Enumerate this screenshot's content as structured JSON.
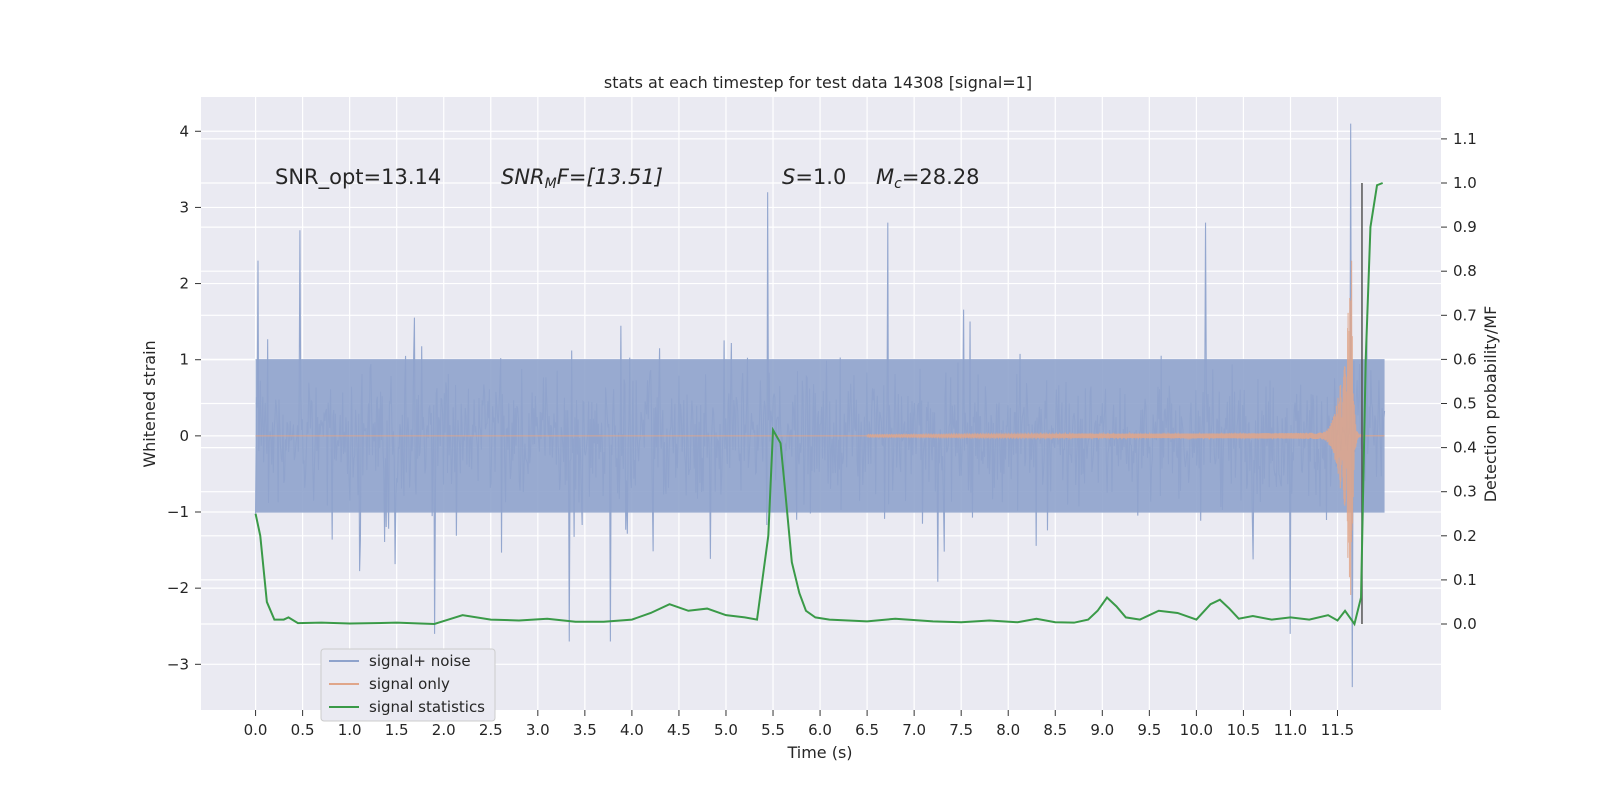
{
  "chart_data": {
    "type": "line",
    "title": "stats at each timestep for test data 14308 [signal=1]",
    "xlabel": "Time (s)",
    "ylabel_left": "Whitened strain",
    "ylabel_right": "Detection probability/MF",
    "xlim": [
      -0.58,
      12.6
    ],
    "ylim_left": [
      -3.6,
      4.45
    ],
    "ylim_right": [
      -0.195,
      1.195
    ],
    "x_ticks": [
      0.0,
      0.5,
      1.0,
      1.5,
      2.0,
      2.5,
      3.0,
      3.5,
      4.0,
      4.5,
      5.0,
      5.5,
      6.0,
      6.5,
      7.0,
      7.5,
      8.0,
      8.5,
      9.0,
      9.5,
      10.0,
      10.5,
      11.0,
      11.5
    ],
    "x_tick_labels": [
      "0.0",
      "0.5",
      "1.0",
      "1.5",
      "2.0",
      "2.5",
      "3.0",
      "3.5",
      "4.0",
      "4.5",
      "5.0",
      "5.5",
      "6.0",
      "6.5",
      "7.0",
      "7.5",
      "8.0",
      "8.5",
      "9.0",
      "9.5",
      "10.0",
      "10.5",
      "11.0",
      "11.5"
    ],
    "y_left_ticks": [
      -3,
      -2,
      -1,
      0,
      1,
      2,
      3,
      4
    ],
    "y_left_tick_labels": [
      "−3",
      "−2",
      "−1",
      "0",
      "1",
      "2",
      "3",
      "4"
    ],
    "y_right_ticks": [
      0.0,
      0.1,
      0.2,
      0.3,
      0.4,
      0.5,
      0.6,
      0.7,
      0.8,
      0.9,
      1.0,
      1.1
    ],
    "y_right_tick_labels": [
      "0.0",
      "0.1",
      "0.2",
      "0.3",
      "0.4",
      "0.5",
      "0.6",
      "0.7",
      "0.8",
      "0.9",
      "1.0",
      "1.1"
    ],
    "grid": true,
    "legend_position": "lower-left",
    "annotations": {
      "snr_opt": "SNR_opt=13.14",
      "snr_mf_base": "SNR",
      "snr_mf_sub": "M",
      "snr_mf_tail": "F=[13.51]",
      "s_sym": "S",
      "s_val": "=1.0",
      "mc_sym": "M",
      "mc_sub": "c",
      "mc_val": "=28.28"
    },
    "series": [
      {
        "name": "signal+ noise",
        "color": "#8fa3cc",
        "description_axis": "left",
        "duration_s": 12.0,
        "typical_envelope": [
          -1.4,
          1.4
        ],
        "spikes": [
          {
            "t": 0.47,
            "y": 2.7
          },
          {
            "t": 1.9,
            "y": -2.6
          },
          {
            "t": 3.33,
            "y": -2.7
          },
          {
            "t": 3.77,
            "y": -2.7
          },
          {
            "t": 5.44,
            "y": 3.2
          },
          {
            "t": 6.72,
            "y": 2.8
          },
          {
            "t": 10.1,
            "y": 2.8
          },
          {
            "t": 11.0,
            "y": -2.6
          },
          {
            "t": 11.64,
            "y": 4.1
          },
          {
            "t": 11.66,
            "y": -3.3
          }
        ]
      },
      {
        "name": "signal only",
        "color": "#e0a68a",
        "description_axis": "left",
        "chirp_start_s": 6.5,
        "peak_time_s": 11.65,
        "peak_amplitude": 2.3
      },
      {
        "name": "signal statistics",
        "color": "#3a9a48",
        "description_axis": "right",
        "points": [
          [
            0.0,
            0.25
          ],
          [
            0.05,
            0.2
          ],
          [
            0.12,
            0.05
          ],
          [
            0.2,
            0.01
          ],
          [
            0.3,
            0.01
          ],
          [
            0.35,
            0.015
          ],
          [
            0.45,
            0.002
          ],
          [
            0.7,
            0.003
          ],
          [
            1.0,
            0.001
          ],
          [
            1.5,
            0.003
          ],
          [
            1.9,
            0.0
          ],
          [
            2.05,
            0.01
          ],
          [
            2.2,
            0.02
          ],
          [
            2.5,
            0.01
          ],
          [
            2.8,
            0.008
          ],
          [
            3.1,
            0.012
          ],
          [
            3.4,
            0.005
          ],
          [
            3.7,
            0.005
          ],
          [
            4.0,
            0.01
          ],
          [
            4.2,
            0.025
          ],
          [
            4.4,
            0.045
          ],
          [
            4.6,
            0.03
          ],
          [
            4.8,
            0.035
          ],
          [
            5.0,
            0.02
          ],
          [
            5.2,
            0.015
          ],
          [
            5.33,
            0.01
          ],
          [
            5.45,
            0.2
          ],
          [
            5.5,
            0.44
          ],
          [
            5.58,
            0.41
          ],
          [
            5.63,
            0.3
          ],
          [
            5.7,
            0.14
          ],
          [
            5.78,
            0.07
          ],
          [
            5.85,
            0.03
          ],
          [
            5.95,
            0.015
          ],
          [
            6.1,
            0.01
          ],
          [
            6.5,
            0.006
          ],
          [
            6.8,
            0.012
          ],
          [
            7.2,
            0.006
          ],
          [
            7.5,
            0.004
          ],
          [
            7.8,
            0.008
          ],
          [
            8.1,
            0.004
          ],
          [
            8.3,
            0.012
          ],
          [
            8.5,
            0.004
          ],
          [
            8.7,
            0.003
          ],
          [
            8.85,
            0.01
          ],
          [
            8.95,
            0.03
          ],
          [
            9.05,
            0.06
          ],
          [
            9.15,
            0.04
          ],
          [
            9.25,
            0.015
          ],
          [
            9.4,
            0.01
          ],
          [
            9.6,
            0.03
          ],
          [
            9.8,
            0.025
          ],
          [
            10.0,
            0.01
          ],
          [
            10.15,
            0.045
          ],
          [
            10.25,
            0.055
          ],
          [
            10.35,
            0.035
          ],
          [
            10.45,
            0.012
          ],
          [
            10.6,
            0.018
          ],
          [
            10.8,
            0.01
          ],
          [
            11.0,
            0.015
          ],
          [
            11.2,
            0.01
          ],
          [
            11.4,
            0.02
          ],
          [
            11.5,
            0.008
          ],
          [
            11.58,
            0.03
          ],
          [
            11.68,
            0.0
          ],
          [
            11.75,
            0.06
          ],
          [
            11.8,
            0.6
          ],
          [
            11.85,
            0.9
          ],
          [
            11.92,
            0.995
          ],
          [
            11.98,
            1.0
          ]
        ]
      }
    ],
    "vertical_marker": {
      "x": 11.76,
      "y_from": 0.0,
      "y_to": 1.0,
      "color": "#555555"
    }
  }
}
